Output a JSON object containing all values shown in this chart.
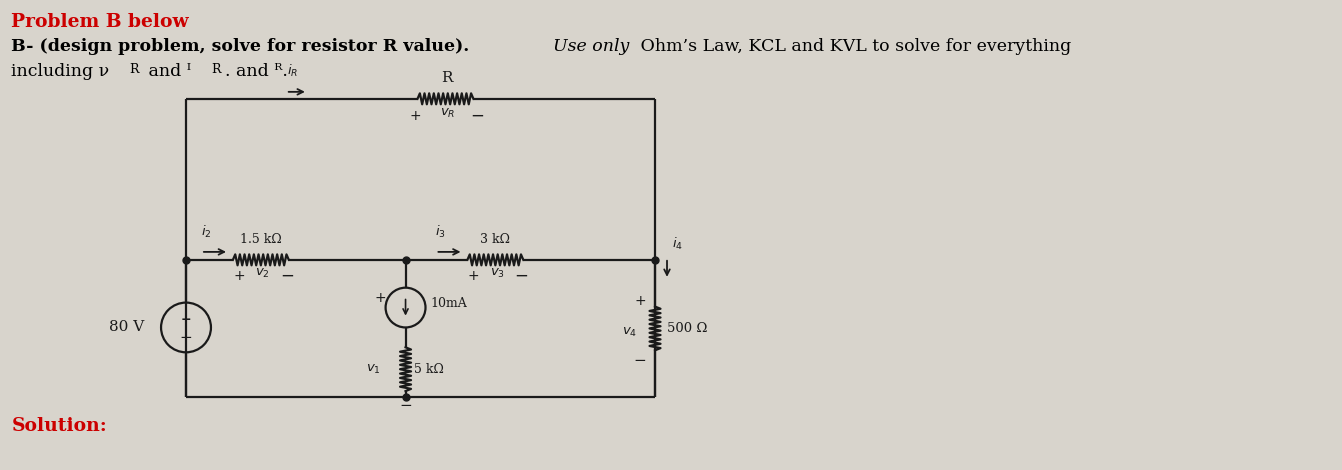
{
  "bg_color": "#d8d4cc",
  "title_color": "#cc0000",
  "cc": "#1a1a1a",
  "title1": "Problem B below",
  "line2_bold": "B- (design problem, solve for resistor R value).",
  "line2_normal": "  Use only Ohm’s Law, KCL and KVL to solve for everything",
  "line3": "including v",
  "solution": "Solution:"
}
